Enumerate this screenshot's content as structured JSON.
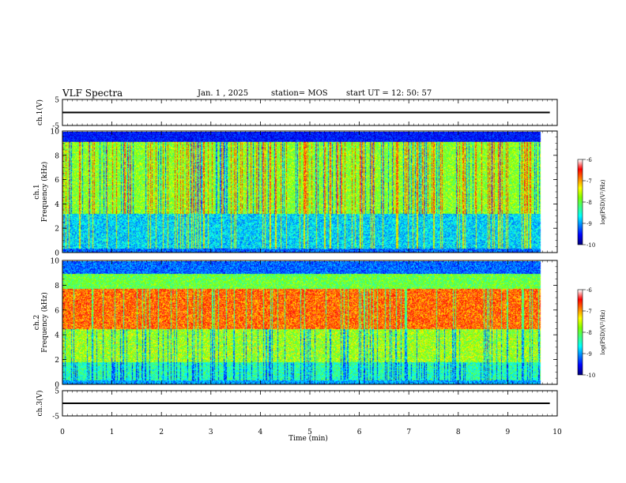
{
  "header": {
    "title": "VLF Spectra",
    "date": "Jan. 1 , 2025",
    "station": "station= MOS",
    "start_label": "start UT =",
    "start_time": "12: 50: 57"
  },
  "chart_data": [
    {
      "type": "line",
      "panel": "ch1-waveform",
      "ylabel": "ch.1(V)",
      "ylim": [
        -5,
        5
      ],
      "yticks": [
        "5",
        "-5"
      ],
      "series": [
        {
          "values_description_free": true,
          "x": [
            0,
            9.85
          ],
          "y": [
            0,
            0
          ]
        }
      ]
    },
    {
      "type": "heatmap",
      "panel": "ch1-spectrogram",
      "ylabel_top": "ch.1",
      "ylabel": "Frequency (kHz)",
      "ylim": [
        0,
        10
      ],
      "yticks": [
        "0",
        "2",
        "4",
        "6",
        "8",
        "10"
      ],
      "xlim": [
        0,
        10
      ],
      "data_extent_min": 9.85,
      "colorbar": {
        "label": "log(PSD)(V²/Hz)",
        "range": [
          -10,
          -6
        ],
        "ticks": [
          "-6",
          "-7",
          "-8",
          "-9",
          "-10"
        ]
      }
    },
    {
      "type": "heatmap",
      "panel": "ch2-spectrogram",
      "ylabel_top": "ch.2",
      "ylabel": "Frequency (kHz)",
      "ylim": [
        0,
        10
      ],
      "yticks": [
        "0",
        "2",
        "4",
        "6",
        "8",
        "10"
      ],
      "xlim": [
        0,
        10
      ],
      "data_extent_min": 9.85,
      "colorbar": {
        "label": "log(PSD)(V²/Hz)",
        "range": [
          -10,
          -6
        ],
        "ticks": [
          "-6",
          "-7",
          "-8",
          "-9",
          "-10"
        ]
      }
    },
    {
      "type": "line",
      "panel": "ch3-waveform",
      "ylabel": "ch.3(V)",
      "ylim": [
        -5,
        5
      ],
      "yticks": [
        "5",
        "-5"
      ],
      "series": [
        {
          "x": [
            0,
            9.85
          ],
          "y": [
            0,
            0
          ]
        }
      ]
    }
  ],
  "x_axis": {
    "label": "Time (min)",
    "range": [
      0,
      10
    ],
    "ticks": [
      "0",
      "1",
      "2",
      "3",
      "4",
      "5",
      "6",
      "7",
      "8",
      "9",
      "10"
    ]
  },
  "colors": {
    "colormap": [
      "#00007f",
      "#0000ff",
      "#0080ff",
      "#00ffff",
      "#40ff80",
      "#80ff00",
      "#ffff00",
      "#ff8000",
      "#ff0000",
      "#ffffff"
    ]
  }
}
